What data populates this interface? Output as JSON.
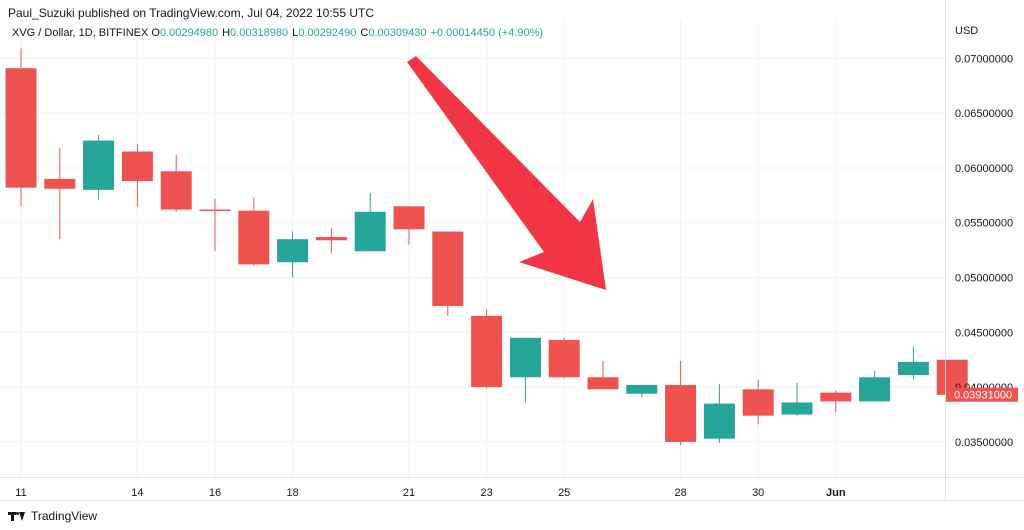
{
  "header": {
    "published": "Paul_Suzuki published on TradingView.com, Jul 04, 2022 10:55 UTC"
  },
  "legend": {
    "symbol": "XVG / Dollar, 1D, BITFINEX",
    "o_label": "O",
    "o": "0.00294980",
    "h_label": "H",
    "h": "0.00318980",
    "l_label": "L",
    "l": "0.00292490",
    "c_label": "C",
    "c": "0.00309430",
    "change": "+0.00014450 (+4.90%)"
  },
  "footer": {
    "brand": "TradingView"
  },
  "colors": {
    "up": "#26a69a",
    "down": "#ef5350",
    "arrow": "#f23645",
    "grid": "#f0f3fa",
    "axis_text": "#131722"
  },
  "chart_data": {
    "type": "candlestick",
    "currency_label": "USD",
    "ylim": [
      0.0318,
      0.0735
    ],
    "y_ticks": [
      {
        "value": 0.035,
        "label": "0.03500000"
      },
      {
        "value": 0.04,
        "label": "0.04000000"
      },
      {
        "value": 0.045,
        "label": "0.04500000"
      },
      {
        "value": 0.05,
        "label": "0.05000000"
      },
      {
        "value": 0.055,
        "label": "0.05500000"
      },
      {
        "value": 0.06,
        "label": "0.06000000"
      },
      {
        "value": 0.065,
        "label": "0.06500000"
      },
      {
        "value": 0.07,
        "label": "0.07000000"
      }
    ],
    "x_ticks": [
      {
        "i": 0,
        "label": "11"
      },
      {
        "i": 3,
        "label": "14"
      },
      {
        "i": 5,
        "label": "16"
      },
      {
        "i": 7,
        "label": "18"
      },
      {
        "i": 10,
        "label": "21"
      },
      {
        "i": 12,
        "label": "23"
      },
      {
        "i": 14,
        "label": "25"
      },
      {
        "i": 17,
        "label": "28"
      },
      {
        "i": 19,
        "label": "30"
      },
      {
        "i": 21,
        "label": "Jun"
      }
    ],
    "last_price": {
      "value": 0.03931,
      "label": "0.03931000"
    },
    "candles": [
      {
        "o": 0.0691,
        "h": 0.0709,
        "l": 0.0565,
        "c": 0.0582
      },
      {
        "o": 0.059,
        "h": 0.0618,
        "l": 0.0535,
        "c": 0.0581
      },
      {
        "o": 0.058,
        "h": 0.063,
        "l": 0.0571,
        "c": 0.0625
      },
      {
        "o": 0.0615,
        "h": 0.0622,
        "l": 0.0565,
        "c": 0.0588
      },
      {
        "o": 0.0597,
        "h": 0.0612,
        "l": 0.056,
        "c": 0.0562
      },
      {
        "o": 0.0562,
        "h": 0.0572,
        "l": 0.0524,
        "c": 0.0561
      },
      {
        "o": 0.0561,
        "h": 0.0573,
        "l": 0.0511,
        "c": 0.0512
      },
      {
        "o": 0.0514,
        "h": 0.0542,
        "l": 0.05,
        "c": 0.0535
      },
      {
        "o": 0.0537,
        "h": 0.0545,
        "l": 0.0522,
        "c": 0.0534
      },
      {
        "o": 0.0524,
        "h": 0.0577,
        "l": 0.0524,
        "c": 0.056
      },
      {
        "o": 0.0565,
        "h": 0.0565,
        "l": 0.053,
        "c": 0.0544
      },
      {
        "o": 0.0542,
        "h": 0.0542,
        "l": 0.0465,
        "c": 0.0474
      },
      {
        "o": 0.0465,
        "h": 0.0471,
        "l": 0.0399,
        "c": 0.04
      },
      {
        "o": 0.0409,
        "h": 0.0445,
        "l": 0.0386,
        "c": 0.0445
      },
      {
        "o": 0.0443,
        "h": 0.0445,
        "l": 0.0408,
        "c": 0.0409
      },
      {
        "o": 0.0409,
        "h": 0.0424,
        "l": 0.0398,
        "c": 0.0398
      },
      {
        "o": 0.0394,
        "h": 0.0402,
        "l": 0.0391,
        "c": 0.0402
      },
      {
        "o": 0.0402,
        "h": 0.0424,
        "l": 0.0347,
        "c": 0.035
      },
      {
        "o": 0.0353,
        "h": 0.0403,
        "l": 0.0349,
        "c": 0.0385
      },
      {
        "o": 0.0398,
        "h": 0.0407,
        "l": 0.0366,
        "c": 0.0374
      },
      {
        "o": 0.0375,
        "h": 0.0404,
        "l": 0.0374,
        "c": 0.0386
      },
      {
        "o": 0.0395,
        "h": 0.0397,
        "l": 0.0377,
        "c": 0.0387
      },
      {
        "o": 0.0387,
        "h": 0.0415,
        "l": 0.0387,
        "c": 0.0409
      },
      {
        "o": 0.0411,
        "h": 0.0437,
        "l": 0.0407,
        "c": 0.0423
      },
      {
        "o": 0.0425,
        "h": 0.0425,
        "l": 0.039,
        "c": 0.0393
      }
    ]
  }
}
